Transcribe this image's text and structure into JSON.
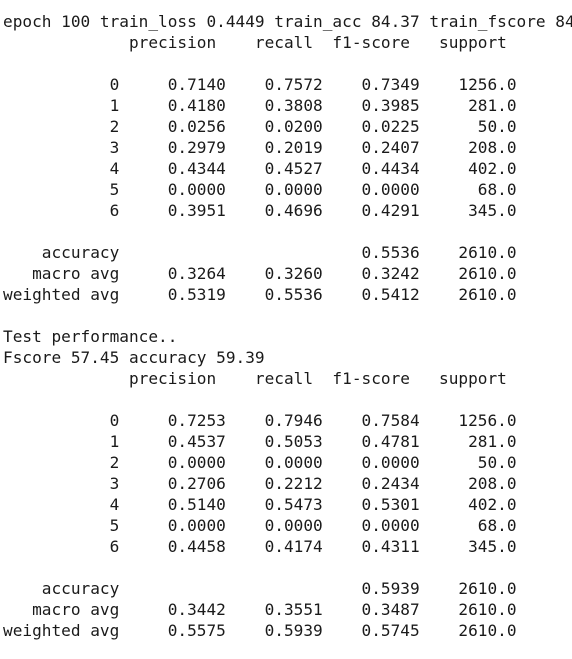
{
  "output_lines": [
    "epoch 100 train_loss 0.4449 train_acc 84.37 train_fscore 84",
    "             precision    recall  f1-score   support",
    "",
    "           0     0.7140    0.7572    0.7349    1256.0",
    "           1     0.4180    0.3808    0.3985     281.0",
    "           2     0.0256    0.0200    0.0225      50.0",
    "           3     0.2979    0.2019    0.2407     208.0",
    "           4     0.4344    0.4527    0.4434     402.0",
    "           5     0.0000    0.0000    0.0000      68.0",
    "           6     0.3951    0.4696    0.4291     345.0",
    "",
    "    accuracy                         0.5536    2610.0",
    "   macro avg     0.3264    0.3260    0.3242    2610.0",
    "weighted avg     0.5319    0.5536    0.5412    2610.0",
    "",
    "Test performance..",
    "Fscore 57.45 accuracy 59.39",
    "             precision    recall  f1-score   support",
    "",
    "           0     0.7253    0.7946    0.7584    1256.0",
    "           1     0.4537    0.5053    0.4781     281.0",
    "           2     0.0000    0.0000    0.0000      50.0",
    "           3     0.2706    0.2212    0.2434     208.0",
    "           4     0.5140    0.5473    0.5301     402.0",
    "           5     0.0000    0.0000    0.0000      68.0",
    "           6     0.4458    0.4174    0.4311     345.0",
    "",
    "    accuracy                         0.5939    2610.0",
    "   macro avg     0.3442    0.3551    0.3487    2610.0",
    "weighted avg     0.5575    0.5939    0.5745    2610.0"
  ]
}
